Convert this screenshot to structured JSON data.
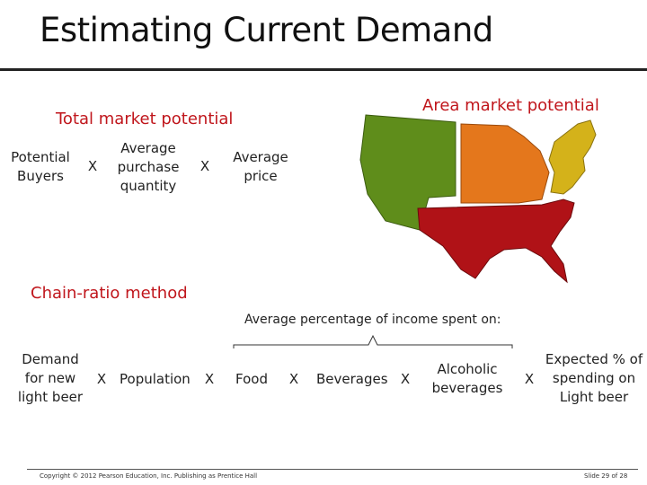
{
  "title": "Estimating Current Demand",
  "total_market": {
    "heading": "Total market potential",
    "terms": [
      "Potential Buyers",
      "Average purchase quantity",
      "Average price"
    ],
    "operators": [
      "X",
      "X"
    ]
  },
  "area_market": {
    "heading": "Area market potential",
    "map_icon": "us-regions-map-icon",
    "region_colors": [
      "#5f8d1b",
      "#e4771c",
      "#d4b21a",
      "#b01217"
    ]
  },
  "chain_ratio": {
    "heading": "Chain-ratio method",
    "bracket_label": "Average percentage of income spent on:",
    "demand": "Demand for new light beer",
    "population": "Population",
    "food": "Food",
    "beverages": "Beverages",
    "alcoholic": "Alcoholic beverages",
    "expected": "Expected % of spending on Light beer",
    "operators": [
      "X",
      "X",
      "X",
      "X",
      "X"
    ]
  },
  "footer": {
    "copyright": "Copyright © 2012 Pearson Education, Inc. Publishing as Prentice Hall",
    "slide": "Slide 29 of 28"
  },
  "colors": {
    "accent": "#c0161c",
    "text": "#222222"
  }
}
